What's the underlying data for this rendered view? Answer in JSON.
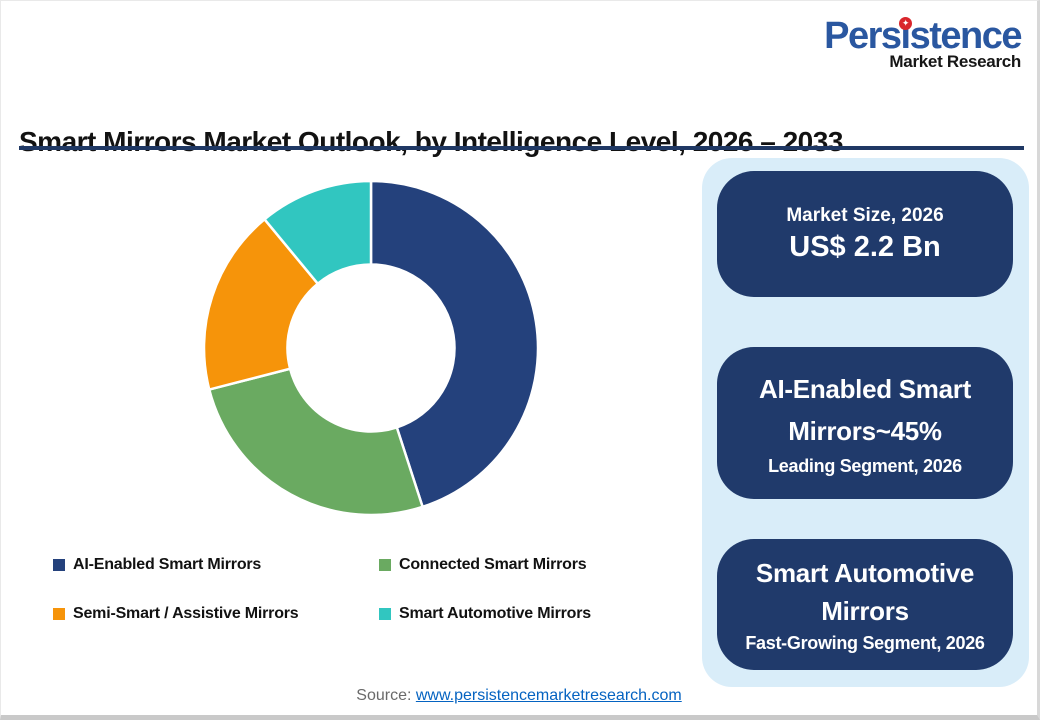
{
  "logo": {
    "name": "Persistence",
    "subtitle": "Market Research"
  },
  "title": "Smart Mirrors Market Outlook, by Intelligence Level, 2026 – 2033",
  "chart_data": {
    "type": "pie",
    "subtype": "donut",
    "title": "Smart Mirrors Market Outlook, by Intelligence Level, 2026 – 2033",
    "categories": [
      "AI-Enabled Smart Mirrors",
      "Connected Smart Mirrors",
      "Semi-Smart / Assistive Mirrors",
      "Smart Automotive Mirrors"
    ],
    "values": [
      45,
      26,
      18,
      11
    ],
    "unit": "percent-share",
    "colors": [
      "#24417C",
      "#6AAA61",
      "#F6940A",
      "#31C6C0"
    ],
    "start_angle_deg": 0,
    "direction": "clockwise",
    "inner_radius_ratio": 0.5,
    "segment_gap_color": "#FFFFFF",
    "legend_position": "bottom"
  },
  "panel": {
    "cards": [
      {
        "title": "Market Size, 2026",
        "value": "US$ 2.2 Bn"
      },
      {
        "title": "AI-Enabled Smart Mirrors~45%",
        "subtitle": "Leading Segment, 2026"
      },
      {
        "title": "Smart Automotive Mirrors",
        "subtitle": "Fast-Growing Segment, 2026"
      }
    ]
  },
  "source": {
    "label": "Source:",
    "link": "www.persistencemarketresearch.com"
  },
  "colors": {
    "brand_blue": "#2A57A0",
    "star_red": "#D9262C",
    "underline_navy": "#1F3864",
    "card_navy": "#203A6B",
    "panel_bg": "#D9EDF9",
    "link_blue": "#0563C1",
    "source_gray": "#6A6A6A"
  }
}
